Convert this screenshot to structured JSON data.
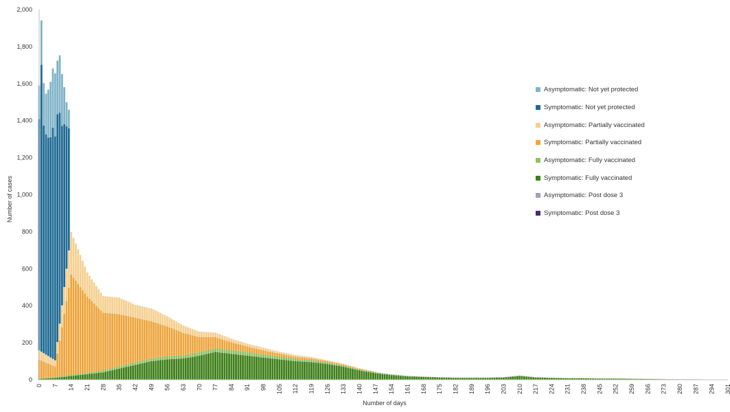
{
  "chart_data": {
    "type": "bar",
    "stacked": true,
    "xlabel": "Number of days",
    "ylabel": "Number of cases",
    "xlim": [
      0,
      301
    ],
    "ylim": [
      0,
      2000
    ],
    "xticks": [
      0,
      7,
      14,
      21,
      28,
      35,
      42,
      49,
      56,
      63,
      70,
      77,
      84,
      91,
      98,
      105,
      112,
      119,
      126,
      133,
      140,
      147,
      154,
      161,
      168,
      175,
      182,
      189,
      196,
      203,
      210,
      217,
      224,
      231,
      238,
      245,
      252,
      259,
      266,
      273,
      280,
      287,
      294,
      301
    ],
    "yticks": [
      "0",
      "200",
      "400",
      "600",
      "800",
      "1,000",
      "1,200",
      "1,400",
      "1,600",
      "1,800",
      "2,000"
    ],
    "ytick_values": [
      0,
      200,
      400,
      600,
      800,
      1000,
      1200,
      1400,
      1600,
      1800,
      2000
    ],
    "grid": false,
    "legend_position": "right",
    "stack_order": [
      "Symptomatic: Fully vaccinated",
      "Asymptomatic: Fully vaccinated",
      "Symptomatic: Partially vaccinated",
      "Asymptomatic: Partially vaccinated",
      "Symptomatic: Not yet protected",
      "Asymptomatic: Not yet protected",
      "Symptomatic: Post dose 3",
      "Asymptomatic: Post dose 3"
    ],
    "series": [
      {
        "name": "Asymptomatic: Not yet protected",
        "color": "#7fb3c8",
        "x": [
          0,
          1,
          2,
          3,
          4,
          5,
          6,
          7,
          8,
          9,
          10,
          11,
          12,
          13
        ],
        "values": [
          180,
          240,
          230,
          220,
          260,
          300,
          320,
          340,
          290,
          310,
          280,
          200,
          130,
          100
        ]
      },
      {
        "name": "Symptomatic: Not yet protected",
        "color": "#1f6a93",
        "x": [
          0,
          1,
          2,
          3,
          4,
          5,
          6,
          7,
          8,
          9,
          10,
          11,
          12,
          13
        ],
        "values": [
          1250,
          1550,
          1230,
          1190,
          1180,
          1190,
          1250,
          1210,
          1230,
          1140,
          970,
          880,
          770,
          660
        ]
      },
      {
        "name": "Asymptomatic: Partially vaccinated",
        "color": "#f6cf8f",
        "x": [
          0,
          7,
          14,
          21,
          28,
          35,
          42,
          49,
          56,
          63,
          70,
          77,
          84,
          91,
          98,
          105,
          112,
          119,
          126,
          133,
          140,
          147
        ],
        "values": [
          50,
          35,
          230,
          130,
          90,
          90,
          70,
          70,
          55,
          40,
          30,
          25,
          20,
          15,
          15,
          10,
          10,
          8,
          5,
          5,
          3,
          2
        ]
      },
      {
        "name": "Symptomatic: Partially vaccinated",
        "color": "#eda53c",
        "x": [
          0,
          7,
          14,
          21,
          28,
          35,
          42,
          49,
          56,
          63,
          70,
          77,
          84,
          91,
          98,
          105,
          112,
          119,
          126,
          133,
          140,
          147
        ],
        "values": [
          100,
          55,
          540,
          410,
          310,
          280,
          240,
          200,
          160,
          120,
          80,
          60,
          40,
          30,
          20,
          15,
          10,
          8,
          5,
          4,
          3,
          2
        ]
      },
      {
        "name": "Asymptomatic: Fully vaccinated",
        "color": "#8fbf6a",
        "x": [
          0,
          7,
          14,
          21,
          28,
          35,
          42,
          49,
          56,
          63,
          70,
          77,
          84,
          91,
          98,
          105,
          112,
          119,
          126,
          133,
          140,
          147,
          154,
          161,
          168,
          175,
          182,
          189,
          196,
          203,
          210,
          217,
          224,
          231,
          238,
          245,
          252,
          259,
          266,
          273,
          280,
          287,
          294,
          301
        ],
        "values": [
          4,
          5,
          8,
          10,
          12,
          14,
          15,
          16,
          18,
          18,
          20,
          20,
          22,
          20,
          18,
          16,
          14,
          12,
          10,
          8,
          6,
          5,
          4,
          3,
          2,
          2,
          2,
          2,
          2,
          2,
          3,
          2,
          1,
          1,
          1,
          1,
          1,
          1,
          1,
          1,
          1,
          1,
          0,
          0
        ]
      },
      {
        "name": "Symptomatic: Fully vaccinated",
        "color": "#3f7f1a",
        "x": [
          0,
          7,
          14,
          21,
          28,
          35,
          42,
          49,
          56,
          63,
          70,
          77,
          84,
          91,
          98,
          105,
          112,
          119,
          126,
          133,
          140,
          147,
          154,
          161,
          168,
          175,
          182,
          189,
          196,
          203,
          210,
          217,
          224,
          231,
          238,
          245,
          252,
          259,
          266,
          273,
          280,
          287,
          294,
          301
        ],
        "values": [
          5,
          10,
          20,
          30,
          40,
          60,
          80,
          100,
          110,
          115,
          130,
          150,
          140,
          130,
          120,
          110,
          100,
          95,
          85,
          70,
          50,
          35,
          25,
          18,
          15,
          12,
          10,
          10,
          10,
          12,
          20,
          12,
          10,
          8,
          8,
          6,
          6,
          5,
          4,
          3,
          2,
          2,
          1,
          0
        ]
      },
      {
        "name": "Asymptomatic: Post dose 3",
        "color": "#a89bc4",
        "x": [],
        "values": []
      },
      {
        "name": "Symptomatic: Post dose 3",
        "color": "#4b2a6f",
        "x": [],
        "values": []
      }
    ]
  }
}
